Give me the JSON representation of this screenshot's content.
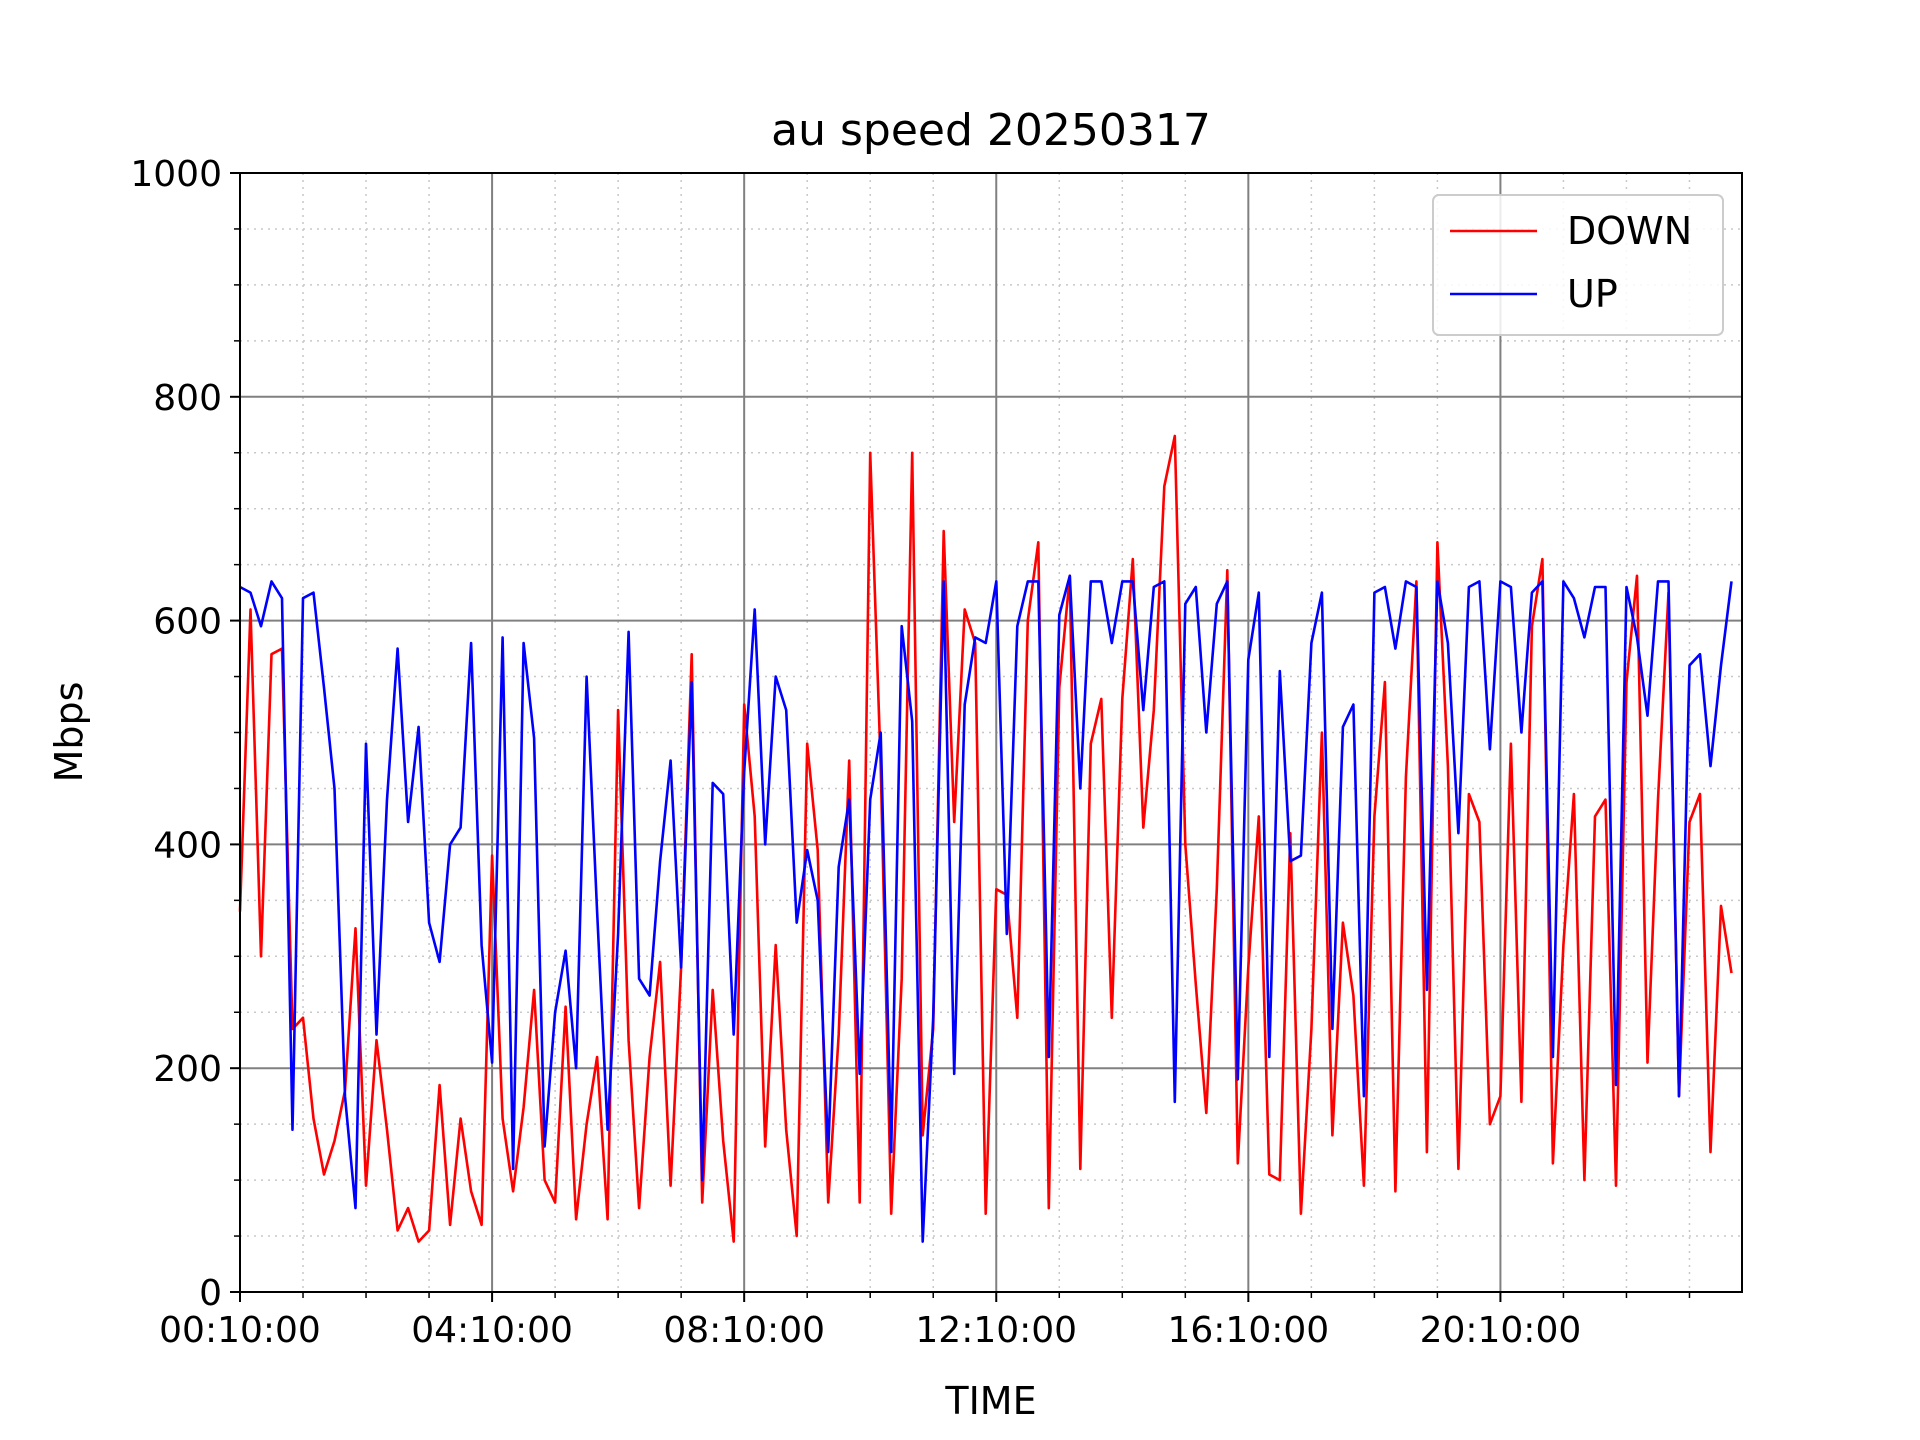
{
  "chart_data": {
    "type": "line",
    "title": "au speed 20250317",
    "xlabel": "TIME",
    "ylabel": "Mbps",
    "ylim": [
      0,
      1000
    ],
    "yticks": [
      0,
      200,
      400,
      600,
      800,
      1000
    ],
    "xlim_minutes": [
      10,
      1440
    ],
    "xticks": [
      {
        "label": "00:10:00",
        "minutes": 10
      },
      {
        "label": "04:10:00",
        "minutes": 250
      },
      {
        "label": "08:10:00",
        "minutes": 490
      },
      {
        "label": "12:10:00",
        "minutes": 730
      },
      {
        "label": "16:10:00",
        "minutes": 970
      },
      {
        "label": "20:10:00",
        "minutes": 1210
      }
    ],
    "grid": true,
    "legend_position": "top-right",
    "series": [
      {
        "name": "DOWN",
        "color": "#ff0000",
        "points": [
          [
            10,
            340
          ],
          [
            20,
            610
          ],
          [
            30,
            300
          ],
          [
            40,
            570
          ],
          [
            50,
            575
          ],
          [
            60,
            235
          ],
          [
            70,
            245
          ],
          [
            80,
            155
          ],
          [
            90,
            105
          ],
          [
            100,
            135
          ],
          [
            110,
            180
          ],
          [
            120,
            325
          ],
          [
            130,
            95
          ],
          [
            140,
            225
          ],
          [
            150,
            145
          ],
          [
            160,
            55
          ],
          [
            170,
            75
          ],
          [
            180,
            45
          ],
          [
            190,
            55
          ],
          [
            200,
            185
          ],
          [
            210,
            60
          ],
          [
            220,
            155
          ],
          [
            230,
            90
          ],
          [
            240,
            60
          ],
          [
            250,
            390
          ],
          [
            260,
            155
          ],
          [
            270,
            90
          ],
          [
            280,
            165
          ],
          [
            290,
            270
          ],
          [
            300,
            100
          ],
          [
            310,
            80
          ],
          [
            320,
            255
          ],
          [
            330,
            65
          ],
          [
            340,
            150
          ],
          [
            350,
            210
          ],
          [
            360,
            65
          ],
          [
            370,
            520
          ],
          [
            380,
            225
          ],
          [
            390,
            75
          ],
          [
            400,
            210
          ],
          [
            410,
            295
          ],
          [
            420,
            95
          ],
          [
            430,
            290
          ],
          [
            440,
            570
          ],
          [
            450,
            80
          ],
          [
            460,
            270
          ],
          [
            470,
            135
          ],
          [
            480,
            45
          ],
          [
            490,
            525
          ],
          [
            500,
            425
          ],
          [
            510,
            130
          ],
          [
            520,
            310
          ],
          [
            530,
            145
          ],
          [
            540,
            50
          ],
          [
            550,
            490
          ],
          [
            560,
            395
          ],
          [
            570,
            80
          ],
          [
            580,
            230
          ],
          [
            590,
            475
          ],
          [
            600,
            80
          ],
          [
            610,
            750
          ],
          [
            620,
            470
          ],
          [
            630,
            70
          ],
          [
            640,
            280
          ],
          [
            650,
            750
          ],
          [
            660,
            140
          ],
          [
            670,
            235
          ],
          [
            680,
            680
          ],
          [
            690,
            420
          ],
          [
            700,
            610
          ],
          [
            710,
            580
          ],
          [
            720,
            70
          ],
          [
            730,
            360
          ],
          [
            740,
            355
          ],
          [
            750,
            245
          ],
          [
            760,
            600
          ],
          [
            770,
            670
          ],
          [
            780,
            75
          ],
          [
            790,
            540
          ],
          [
            800,
            640
          ],
          [
            810,
            110
          ],
          [
            820,
            490
          ],
          [
            830,
            530
          ],
          [
            840,
            245
          ],
          [
            850,
            530
          ],
          [
            860,
            655
          ],
          [
            870,
            415
          ],
          [
            880,
            520
          ],
          [
            890,
            720
          ],
          [
            900,
            765
          ],
          [
            910,
            400
          ],
          [
            920,
            275
          ],
          [
            930,
            160
          ],
          [
            940,
            360
          ],
          [
            950,
            645
          ],
          [
            960,
            115
          ],
          [
            970,
            290
          ],
          [
            980,
            425
          ],
          [
            990,
            105
          ],
          [
            1000,
            100
          ],
          [
            1010,
            410
          ],
          [
            1020,
            70
          ],
          [
            1030,
            235
          ],
          [
            1040,
            500
          ],
          [
            1050,
            140
          ],
          [
            1060,
            330
          ],
          [
            1070,
            265
          ],
          [
            1080,
            95
          ],
          [
            1090,
            425
          ],
          [
            1100,
            545
          ],
          [
            1110,
            90
          ],
          [
            1120,
            460
          ],
          [
            1130,
            635
          ],
          [
            1140,
            125
          ],
          [
            1150,
            670
          ],
          [
            1160,
            470
          ],
          [
            1170,
            110
          ],
          [
            1180,
            445
          ],
          [
            1190,
            420
          ],
          [
            1200,
            150
          ],
          [
            1210,
            175
          ],
          [
            1220,
            490
          ],
          [
            1230,
            170
          ],
          [
            1240,
            595
          ],
          [
            1250,
            655
          ],
          [
            1260,
            115
          ],
          [
            1270,
            310
          ],
          [
            1280,
            445
          ],
          [
            1290,
            100
          ],
          [
            1300,
            425
          ],
          [
            1310,
            440
          ],
          [
            1320,
            95
          ],
          [
            1330,
            545
          ],
          [
            1340,
            640
          ],
          [
            1350,
            205
          ],
          [
            1360,
            440
          ],
          [
            1370,
            625
          ],
          [
            1380,
            175
          ],
          [
            1390,
            420
          ],
          [
            1400,
            445
          ],
          [
            1410,
            125
          ],
          [
            1420,
            345
          ],
          [
            1430,
            285
          ]
        ]
      },
      {
        "name": "UP",
        "color": "#0000ff",
        "points": [
          [
            10,
            630
          ],
          [
            20,
            625
          ],
          [
            30,
            595
          ],
          [
            40,
            635
          ],
          [
            50,
            620
          ],
          [
            60,
            145
          ],
          [
            70,
            620
          ],
          [
            80,
            625
          ],
          [
            90,
            540
          ],
          [
            100,
            450
          ],
          [
            110,
            175
          ],
          [
            120,
            75
          ],
          [
            130,
            490
          ],
          [
            140,
            230
          ],
          [
            150,
            440
          ],
          [
            160,
            575
          ],
          [
            170,
            420
          ],
          [
            180,
            505
          ],
          [
            190,
            330
          ],
          [
            200,
            295
          ],
          [
            210,
            400
          ],
          [
            220,
            415
          ],
          [
            230,
            580
          ],
          [
            240,
            310
          ],
          [
            250,
            205
          ],
          [
            260,
            585
          ],
          [
            270,
            110
          ],
          [
            280,
            580
          ],
          [
            290,
            495
          ],
          [
            300,
            130
          ],
          [
            310,
            250
          ],
          [
            320,
            305
          ],
          [
            330,
            200
          ],
          [
            340,
            550
          ],
          [
            350,
            340
          ],
          [
            360,
            145
          ],
          [
            370,
            320
          ],
          [
            380,
            590
          ],
          [
            390,
            280
          ],
          [
            400,
            265
          ],
          [
            410,
            385
          ],
          [
            420,
            475
          ],
          [
            430,
            290
          ],
          [
            440,
            545
          ],
          [
            450,
            100
          ],
          [
            460,
            455
          ],
          [
            470,
            445
          ],
          [
            480,
            230
          ],
          [
            490,
            465
          ],
          [
            500,
            610
          ],
          [
            510,
            400
          ],
          [
            520,
            550
          ],
          [
            530,
            520
          ],
          [
            540,
            330
          ],
          [
            550,
            395
          ],
          [
            560,
            350
          ],
          [
            570,
            125
          ],
          [
            580,
            380
          ],
          [
            590,
            440
          ],
          [
            600,
            195
          ],
          [
            610,
            440
          ],
          [
            620,
            500
          ],
          [
            630,
            125
          ],
          [
            640,
            595
          ],
          [
            650,
            510
          ],
          [
            660,
            45
          ],
          [
            670,
            245
          ],
          [
            680,
            635
          ],
          [
            690,
            195
          ],
          [
            700,
            525
          ],
          [
            710,
            585
          ],
          [
            720,
            580
          ],
          [
            730,
            635
          ],
          [
            740,
            320
          ],
          [
            750,
            595
          ],
          [
            760,
            635
          ],
          [
            770,
            635
          ],
          [
            780,
            210
          ],
          [
            790,
            605
          ],
          [
            800,
            640
          ],
          [
            810,
            450
          ],
          [
            820,
            635
          ],
          [
            830,
            635
          ],
          [
            840,
            580
          ],
          [
            850,
            635
          ],
          [
            860,
            635
          ],
          [
            870,
            520
          ],
          [
            880,
            630
          ],
          [
            890,
            635
          ],
          [
            900,
            170
          ],
          [
            910,
            615
          ],
          [
            920,
            630
          ],
          [
            930,
            500
          ],
          [
            940,
            615
          ],
          [
            950,
            635
          ],
          [
            960,
            190
          ],
          [
            970,
            565
          ],
          [
            980,
            625
          ],
          [
            990,
            210
          ],
          [
            1000,
            555
          ],
          [
            1010,
            385
          ],
          [
            1020,
            390
          ],
          [
            1030,
            580
          ],
          [
            1040,
            625
          ],
          [
            1050,
            235
          ],
          [
            1060,
            505
          ],
          [
            1070,
            525
          ],
          [
            1080,
            175
          ],
          [
            1090,
            625
          ],
          [
            1100,
            630
          ],
          [
            1110,
            575
          ],
          [
            1120,
            635
          ],
          [
            1130,
            630
          ],
          [
            1140,
            270
          ],
          [
            1150,
            635
          ],
          [
            1160,
            580
          ],
          [
            1170,
            410
          ],
          [
            1180,
            630
          ],
          [
            1190,
            635
          ],
          [
            1200,
            485
          ],
          [
            1210,
            635
          ],
          [
            1220,
            630
          ],
          [
            1230,
            500
          ],
          [
            1240,
            625
          ],
          [
            1250,
            635
          ],
          [
            1260,
            210
          ],
          [
            1270,
            635
          ],
          [
            1280,
            620
          ],
          [
            1290,
            585
          ],
          [
            1300,
            630
          ],
          [
            1310,
            630
          ],
          [
            1320,
            185
          ],
          [
            1330,
            630
          ],
          [
            1340,
            585
          ],
          [
            1350,
            515
          ],
          [
            1360,
            635
          ],
          [
            1370,
            635
          ],
          [
            1380,
            175
          ],
          [
            1390,
            560
          ],
          [
            1400,
            570
          ],
          [
            1410,
            470
          ],
          [
            1420,
            560
          ],
          [
            1430,
            635
          ]
        ]
      }
    ]
  }
}
